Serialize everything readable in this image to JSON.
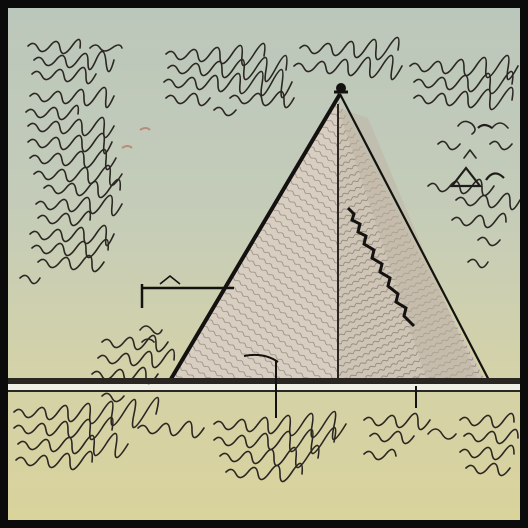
{
  "illustration": {
    "subject": "pyramid-sketch",
    "palette": {
      "frame": "#0b0b0b",
      "paper_top": "#bcc7bb",
      "paper_bottom": "#d9d39c",
      "ink": "#1f1c19",
      "pyramid_fill": "#d8cfc2",
      "accent_red": "#b05a4a"
    }
  }
}
